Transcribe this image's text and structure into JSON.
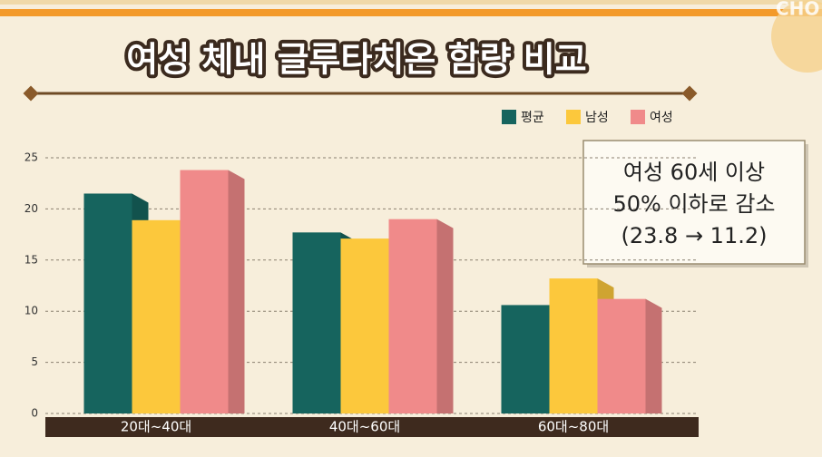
{
  "logo": "CHO",
  "chart_data": {
    "type": "bar",
    "title": "여성 체내 글루타치온 함량 비교",
    "categories": [
      "20대~40대",
      "40대~60대",
      "60대~80대"
    ],
    "series": [
      {
        "name": "평균",
        "color": "#16645e",
        "values": [
          21.5,
          17.7,
          10.6
        ]
      },
      {
        "name": "남성",
        "color": "#fcc83c",
        "values": [
          18.9,
          17.1,
          13.2
        ]
      },
      {
        "name": "여성",
        "color": "#f08a8a",
        "values": [
          23.8,
          19.0,
          11.2
        ]
      }
    ],
    "ylim": [
      0,
      25
    ],
    "yticks": [
      0,
      5,
      10,
      15,
      20,
      25
    ],
    "grid": true,
    "annotation": [
      "여성 60세 이상",
      "50% 이하로 감소",
      "(23.8 → 11.2)"
    ]
  }
}
